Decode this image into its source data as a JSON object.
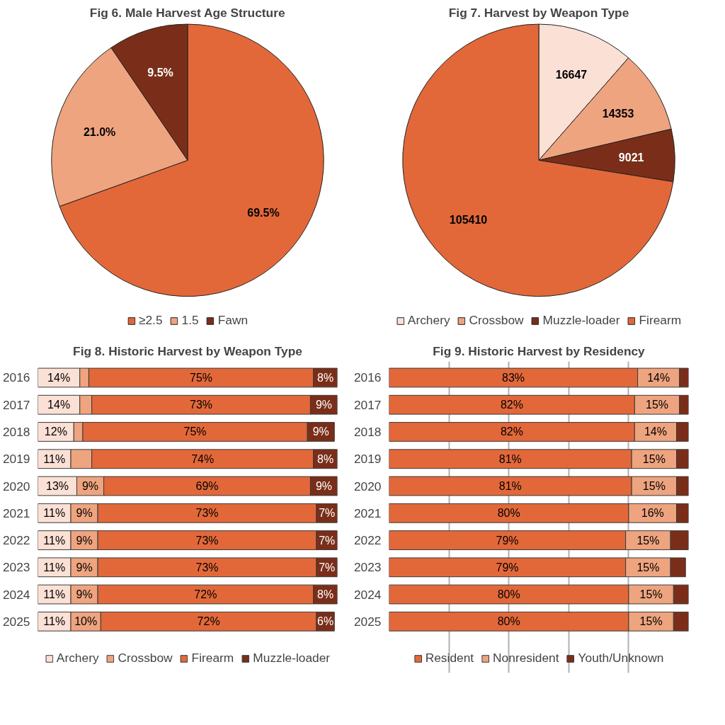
{
  "chart_data": [
    {
      "type": "pie",
      "title": "Fig 6. Male Harvest Age Structure",
      "categories": [
        "≥2.5",
        "1.5",
        "Fawn"
      ],
      "values": [
        69.5,
        21.0,
        9.5
      ],
      "colors": [
        "#e2683a",
        "#eea47f",
        "#7a2e19"
      ],
      "value_labels": [
        "69.5%",
        "21.0%",
        "9.5%"
      ],
      "legend": "bottom"
    },
    {
      "type": "pie",
      "title": "Fig 7. Harvest by Weapon Type",
      "categories": [
        "Archery",
        "Crossbow",
        "Muzzle-loader",
        "Firearm"
      ],
      "values": [
        16647,
        14353,
        9021,
        105410
      ],
      "colors": [
        "#fbe0d5",
        "#eea47f",
        "#7a2e19",
        "#e2683a"
      ],
      "data_labels": true,
      "legend": "bottom"
    },
    {
      "type": "bar",
      "orientation": "horizontal",
      "stacked": true,
      "title": "Fig 8. Historic Harvest by Weapon Type",
      "categories": [
        "2016",
        "2017",
        "2018",
        "2019",
        "2020",
        "2021",
        "2022",
        "2023",
        "2024",
        "2025"
      ],
      "xlim": [
        0,
        100
      ],
      "tick_labels": "y",
      "legend": "bottom",
      "series": [
        {
          "name": "Archery",
          "color": "#fbe0d5",
          "values": [
            14,
            14,
            12,
            11,
            13,
            11,
            11,
            11,
            11,
            11
          ],
          "value_labels": [
            "14%",
            "14%",
            "12%",
            "11%",
            "13%",
            "11%",
            "11%",
            "11%",
            "11%",
            "11%"
          ]
        },
        {
          "name": "Crossbow",
          "color": "#eea47f",
          "values": [
            3,
            4,
            3,
            7,
            9,
            9,
            9,
            9,
            9,
            10
          ],
          "value_labels": [
            null,
            null,
            null,
            null,
            "9%",
            "9%",
            "9%",
            "9%",
            "9%",
            "10%"
          ]
        },
        {
          "name": "Firearm",
          "color": "#e2683a",
          "values": [
            75,
            73,
            75,
            74,
            69,
            73,
            73,
            73,
            72,
            72
          ],
          "value_labels": [
            "75%",
            "73%",
            "75%",
            "74%",
            "69%",
            "73%",
            "73%",
            "73%",
            "72%",
            "72%"
          ]
        },
        {
          "name": "Muzzle-loader",
          "color": "#7a2e19",
          "values": [
            8,
            9,
            9,
            8,
            9,
            7,
            7,
            7,
            8,
            6
          ],
          "value_labels": [
            "8%",
            "9%",
            "9%",
            "8%",
            "9%",
            "7%",
            "7%",
            "7%",
            "8%",
            "6%"
          ]
        }
      ]
    },
    {
      "type": "bar",
      "orientation": "horizontal",
      "stacked": true,
      "title": "Fig 9. Historic Harvest by Residency",
      "categories": [
        "2016",
        "2017",
        "2018",
        "2019",
        "2020",
        "2021",
        "2022",
        "2023",
        "2024",
        "2025"
      ],
      "xlim": [
        0,
        100
      ],
      "xticks": [
        {
          "value": 20,
          "label": null
        },
        {
          "value": 40,
          "label": null
        },
        {
          "value": 60,
          "label": null
        },
        {
          "value": 80,
          "label": null
        }
      ],
      "grid": "x",
      "tick_labels": "y",
      "legend": "bottom",
      "series": [
        {
          "name": "Resident",
          "color": "#e2683a",
          "values": [
            83,
            82,
            82,
            81,
            81,
            80,
            79,
            79,
            80,
            80
          ],
          "value_labels": [
            "83%",
            "82%",
            "82%",
            "81%",
            "81%",
            "80%",
            "79%",
            "79%",
            "80%",
            "80%"
          ]
        },
        {
          "name": "Nonresident",
          "color": "#eea47f",
          "values": [
            14,
            15,
            14,
            15,
            15,
            16,
            15,
            15,
            15,
            15
          ],
          "value_labels": [
            "14%",
            "15%",
            "14%",
            "15%",
            "15%",
            "16%",
            "15%",
            "15%",
            "15%",
            "15%"
          ]
        },
        {
          "name": "Youth/Unknown",
          "color": "#7a2e19",
          "values": [
            3,
            3,
            4,
            4,
            4,
            4,
            6,
            5,
            5,
            5
          ],
          "value_labels": [
            null,
            null,
            null,
            null,
            null,
            null,
            null,
            null,
            null,
            null
          ]
        }
      ]
    }
  ]
}
